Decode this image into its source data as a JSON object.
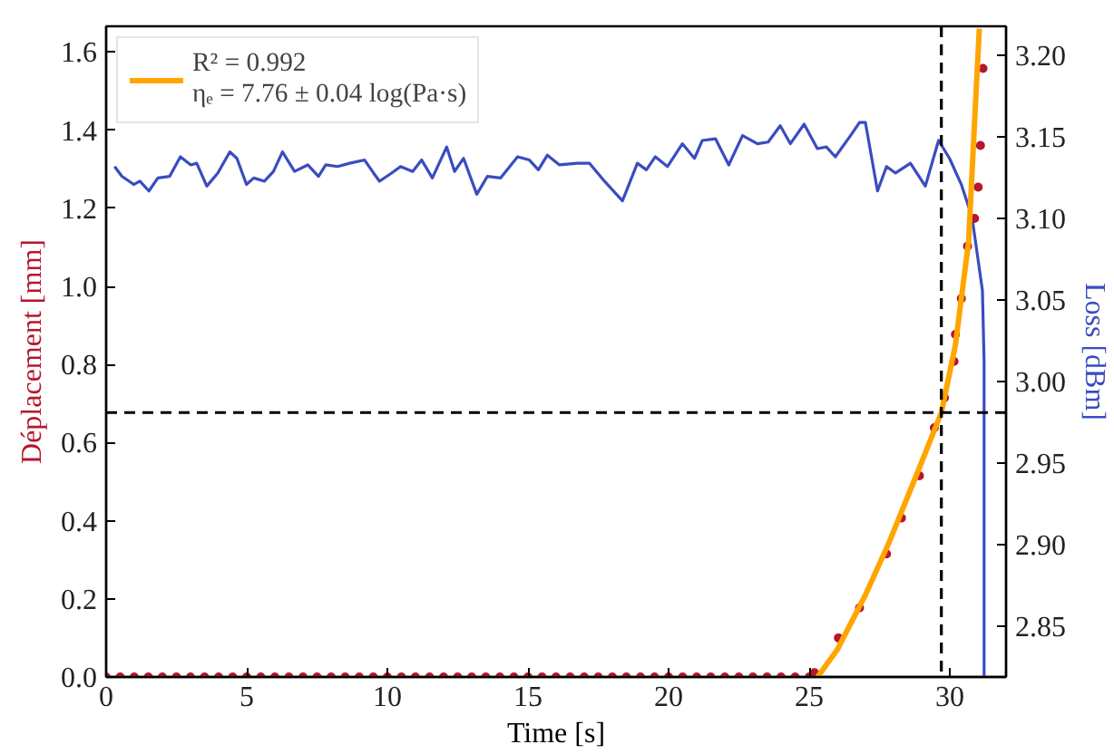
{
  "chart_data": {
    "type": "scatter",
    "xlabel": "Time [s]",
    "ylabel": "Déplacement [mm]",
    "y2label": "Loss [dBm]",
    "xlim": [
      0,
      32
    ],
    "ylim": [
      0,
      1.666
    ],
    "y2lim": [
      2.819,
      3.218
    ],
    "xticks": [
      0,
      5,
      10,
      15,
      20,
      25,
      30
    ],
    "yticks": [
      {
        "value": 0,
        "label": "0.0"
      },
      {
        "value": 0.2,
        "label": "0.2"
      },
      {
        "value": 0.4,
        "label": "0.4"
      },
      {
        "value": 0.6,
        "label": "0.6"
      },
      {
        "value": 0.8,
        "label": "0.8"
      },
      {
        "value": 1.0,
        "label": "1.0"
      },
      {
        "value": 1.2,
        "label": "1.2"
      },
      {
        "value": 1.4,
        "label": "1.4"
      },
      {
        "value": 1.6,
        "label": "1.6"
      }
    ],
    "y2ticks": [
      {
        "value": 2.85,
        "label": "2.85"
      },
      {
        "value": 2.9,
        "label": "2.90"
      },
      {
        "value": 2.95,
        "label": "2.95"
      },
      {
        "value": 3.0,
        "label": "3.00"
      },
      {
        "value": 3.05,
        "label": "3.05"
      },
      {
        "value": 3.1,
        "label": "3.10"
      },
      {
        "value": 3.15,
        "label": "3.15"
      },
      {
        "value": 3.2,
        "label": "3.20"
      }
    ],
    "grid": false,
    "legend": "top left",
    "series": [
      {
        "marker": "circle",
        "color": "#b5172d",
        "x": [
          0,
          0.5,
          1,
          1.5,
          2,
          2.5,
          3,
          3.5,
          4,
          4.5,
          5,
          5.5,
          6,
          6.5,
          7,
          7.5,
          8,
          8.5,
          9,
          9.5,
          10,
          10.5,
          11,
          11.5,
          12,
          12.5,
          13,
          13.5,
          14,
          14.5,
          15,
          15.5,
          16,
          16.5,
          17,
          17.5,
          18,
          18.5,
          19,
          19.5,
          20,
          20.5,
          21,
          21.5,
          22,
          22.5,
          23,
          23.5,
          24,
          24.5,
          25,
          25.19,
          26.04,
          26.79,
          27.75,
          28.28,
          28.92,
          29.45,
          29.81,
          30.15,
          30.2,
          30.41,
          30.63,
          30.88,
          31.01,
          31.09,
          31.18
        ],
        "values": [
          0,
          0,
          0,
          0,
          0,
          0,
          0,
          0,
          0,
          0,
          0,
          0,
          0,
          0,
          0,
          0,
          0,
          0,
          0,
          0,
          0,
          0,
          0,
          0,
          0,
          0,
          0,
          0,
          0,
          0,
          0,
          0,
          0,
          0,
          0,
          0,
          0,
          0,
          0,
          0,
          0,
          0,
          0,
          0,
          0,
          0,
          0,
          0,
          0,
          0,
          0,
          0.011,
          0.1,
          0.177,
          0.315,
          0.407,
          0.515,
          0.638,
          0.715,
          0.808,
          0.877,
          0.969,
          1.103,
          1.174,
          1.254,
          1.361,
          1.558
        ]
      },
      {
        "type": "line",
        "name": "R² = 0.992\nηₑ = 7.76 ± 0.04 log(Pa·s)",
        "color": "#ffa500",
        "x": [
          25.3,
          26,
          27,
          27.85,
          29,
          29.7,
          30.2,
          30.67,
          30.88,
          31.05
        ],
        "values": [
          0,
          0.07,
          0.21,
          0.346,
          0.55,
          0.677,
          0.85,
          1.116,
          1.42,
          1.66
        ]
      },
      {
        "type": "line",
        "axis": "y2",
        "color": "#3a4cc0",
        "x": [
          0.3,
          0.56,
          0.98,
          1.2,
          1.52,
          1.84,
          2.26,
          2.64,
          3.01,
          3.22,
          3.58,
          3.97,
          4.4,
          4.65,
          4.99,
          5.25,
          5.63,
          5.95,
          6.27,
          6.7,
          7.17,
          7.55,
          7.81,
          8.23,
          8.66,
          9.19,
          9.51,
          9.72,
          10.15,
          10.47,
          10.9,
          11.22,
          11.6,
          12.11,
          12.39,
          12.71,
          13.18,
          13.56,
          14.03,
          14.63,
          15.05,
          15.37,
          15.69,
          16.12,
          16.76,
          17.19,
          17.72,
          18.36,
          18.89,
          19.21,
          19.53,
          19.96,
          20.49,
          20.92,
          21.2,
          21.67,
          22.14,
          22.63,
          23.16,
          23.54,
          23.97,
          24.33,
          24.82,
          25.29,
          25.61,
          25.93,
          26.47,
          26.79,
          27.0,
          27.43,
          27.75,
          28.07,
          28.6,
          29.13,
          29.6,
          29.99,
          30.41,
          30.79,
          31.16,
          31.22,
          31.22
        ],
        "values": [
          3.132,
          3.126,
          3.121,
          3.123,
          3.117,
          3.125,
          3.126,
          3.138,
          3.133,
          3.134,
          3.12,
          3.128,
          3.141,
          3.137,
          3.121,
          3.125,
          3.123,
          3.129,
          3.141,
          3.129,
          3.133,
          3.126,
          3.133,
          3.132,
          3.134,
          3.136,
          3.128,
          3.123,
          3.128,
          3.132,
          3.129,
          3.136,
          3.125,
          3.144,
          3.129,
          3.137,
          3.115,
          3.126,
          3.125,
          3.138,
          3.136,
          3.13,
          3.139,
          3.133,
          3.134,
          3.134,
          3.123,
          3.111,
          3.134,
          3.13,
          3.138,
          3.132,
          3.146,
          3.137,
          3.148,
          3.149,
          3.133,
          3.151,
          3.146,
          3.147,
          3.157,
          3.146,
          3.158,
          3.143,
          3.144,
          3.138,
          3.151,
          3.159,
          3.159,
          3.117,
          3.132,
          3.128,
          3.134,
          3.12,
          3.148,
          3.137,
          3.121,
          3.101,
          3.056,
          3.012,
          2.819
        ]
      }
    ],
    "ref_lines": [
      {
        "axis": "x",
        "value": 29.7,
        "color": "#000000",
        "line_style": "dashed"
      },
      {
        "axis": "y",
        "value": 0.677,
        "color": "#000000",
        "line_style": "dashed"
      }
    ]
  }
}
